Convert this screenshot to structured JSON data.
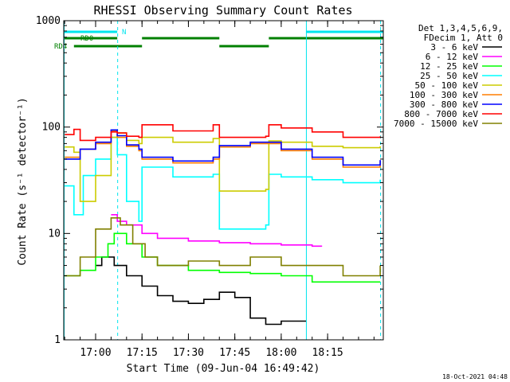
{
  "chart_data": {
    "type": "line",
    "title": "RHESSI Observing Summary Count Rates",
    "xlabel": "Start Time (09-Jun-04 16:49:42)",
    "ylabel": "Count Rate (s⁻¹ detector⁻¹)",
    "yscale": "log",
    "ylim": [
      1,
      1000
    ],
    "xlim": [
      "16:49:42",
      "18:33:00"
    ],
    "x_ticks": [
      "17:00",
      "17:15",
      "17:30",
      "17:45",
      "18:00",
      "18:15"
    ],
    "y_ticks": [
      "1",
      "10",
      "100",
      "1000"
    ],
    "timestamp": "18-Oct-2021 04:48",
    "legend": {
      "position": "right",
      "header": [
        "Det 1,3,4,5,6,9,",
        "FDecim 1, Att 0"
      ]
    },
    "flags": [
      {
        "label": "N",
        "color": "#00e5ee",
        "spans": [
          [
            "16:49:42",
            "17:07:00"
          ],
          [
            "18:08:00",
            "18:33:00"
          ]
        ]
      },
      {
        "label": "RD0",
        "color": "#008000",
        "spans": [
          [
            "16:49:42",
            "17:07:00"
          ],
          [
            "17:15:00",
            "17:40:00"
          ],
          [
            "17:56:00",
            "18:33:00"
          ]
        ]
      },
      {
        "label": "RD4",
        "color": "#008000",
        "spans": [
          [
            "16:53:00",
            "17:15:00"
          ],
          [
            "17:40:00",
            "17:56:00"
          ]
        ]
      }
    ],
    "markers": {
      "solid_cyan": [
        "16:49:42",
        "18:08:00"
      ],
      "dashed_cyan": [
        "17:07:00",
        "18:32:00"
      ]
    },
    "series": [
      {
        "name": "3 - 6 keV",
        "color": "#000000",
        "x": [
          "17:00",
          "17:02",
          "17:04",
          "17:06",
          "17:08",
          "17:10",
          "17:15",
          "17:20",
          "17:25",
          "17:30",
          "17:35",
          "17:40",
          "17:45",
          "17:50",
          "17:55",
          "18:00",
          "18:02",
          "18:04",
          "18:06",
          "18:08"
        ],
        "values": [
          5,
          6,
          6,
          5,
          5,
          4,
          3.2,
          2.6,
          2.3,
          2.2,
          2.4,
          2.8,
          2.5,
          1.6,
          1.4,
          1.5,
          1.5,
          1.5,
          1.5,
          1.5
        ]
      },
      {
        "name": "6 - 12 keV",
        "color": "#ff00ff",
        "x": [
          "17:05",
          "17:07",
          "17:10",
          "17:15",
          "17:20",
          "17:30",
          "17:40",
          "17:50",
          "18:00",
          "18:10",
          "18:13"
        ],
        "values": [
          15,
          13,
          12,
          10,
          9,
          8.5,
          8.2,
          8,
          7.8,
          7.6,
          7.5
        ]
      },
      {
        "name": "12 - 25 keV",
        "color": "#00ff00",
        "x": [
          "16:50",
          "16:55",
          "17:00",
          "17:04",
          "17:06",
          "17:10",
          "17:15",
          "17:20",
          "17:30",
          "17:40",
          "17:50",
          "18:00",
          "18:10",
          "18:20",
          "18:32"
        ],
        "values": [
          4,
          4.5,
          6,
          8,
          10,
          8,
          6,
          5,
          4.5,
          4.3,
          4.2,
          4,
          3.5,
          3.5,
          3.5
        ]
      },
      {
        "name": "25 - 50 keV",
        "color": "#00ffff",
        "x": [
          "16:50",
          "16:53",
          "16:56",
          "17:00",
          "17:05",
          "17:07",
          "17:10",
          "17:14",
          "17:15",
          "17:25",
          "17:38",
          "17:40",
          "17:55",
          "17:56",
          "18:00",
          "18:10",
          "18:20",
          "18:32"
        ],
        "values": [
          28,
          15,
          35,
          50,
          80,
          55,
          20,
          13,
          42,
          34,
          36,
          11,
          12,
          36,
          34,
          32,
          30,
          32
        ]
      },
      {
        "name": "50 - 100 keV",
        "color": "#cccc00",
        "x": [
          "16:50",
          "16:53",
          "16:55",
          "17:00",
          "17:05",
          "17:07",
          "17:10",
          "17:14",
          "17:15",
          "17:25",
          "17:38",
          "17:40",
          "17:55",
          "17:56",
          "18:00",
          "18:10",
          "18:20",
          "18:32"
        ],
        "values": [
          65,
          58,
          20,
          35,
          80,
          88,
          75,
          70,
          80,
          72,
          78,
          25,
          26,
          74,
          72,
          66,
          64,
          66
        ]
      },
      {
        "name": "100 - 300 keV",
        "color": "#ff7f00",
        "x": [
          "16:50",
          "16:55",
          "17:00",
          "17:05",
          "17:07",
          "17:10",
          "17:14",
          "17:15",
          "17:25",
          "17:38",
          "17:40",
          "17:50",
          "18:00",
          "18:10",
          "18:20",
          "18:32"
        ],
        "values": [
          52,
          62,
          70,
          92,
          80,
          66,
          60,
          50,
          46,
          50,
          65,
          70,
          60,
          50,
          42,
          48
        ]
      },
      {
        "name": "300 - 800 keV",
        "color": "#0000ff",
        "x": [
          "16:50",
          "16:55",
          "17:00",
          "17:05",
          "17:07",
          "17:10",
          "17:14",
          "17:15",
          "17:25",
          "17:38",
          "17:40",
          "17:50",
          "18:00",
          "18:10",
          "18:20",
          "18:32"
        ],
        "values": [
          50,
          62,
          72,
          94,
          83,
          68,
          62,
          52,
          48,
          52,
          67,
          72,
          62,
          52,
          44,
          49
        ]
      },
      {
        "name": "800 - 7000 keV",
        "color": "#ff0000",
        "x": [
          "16:50",
          "16:53",
          "16:55",
          "17:00",
          "17:05",
          "17:07",
          "17:10",
          "17:14",
          "17:15",
          "17:25",
          "17:38",
          "17:40",
          "17:55",
          "17:56",
          "18:00",
          "18:10",
          "18:20",
          "18:32"
        ],
        "values": [
          85,
          95,
          75,
          80,
          90,
          88,
          82,
          80,
          105,
          92,
          105,
          80,
          82,
          105,
          98,
          90,
          80,
          82
        ]
      },
      {
        "name": "7000 - 15000 keV",
        "color": "#808000",
        "x": [
          "16:50",
          "16:55",
          "17:00",
          "17:05",
          "17:08",
          "17:12",
          "17:16",
          "17:20",
          "17:30",
          "17:40",
          "17:50",
          "18:00",
          "18:10",
          "18:20",
          "18:32"
        ],
        "values": [
          4,
          6,
          11,
          14,
          12,
          8,
          6,
          5,
          5.5,
          5,
          6,
          5,
          5,
          4,
          5
        ]
      }
    ]
  }
}
